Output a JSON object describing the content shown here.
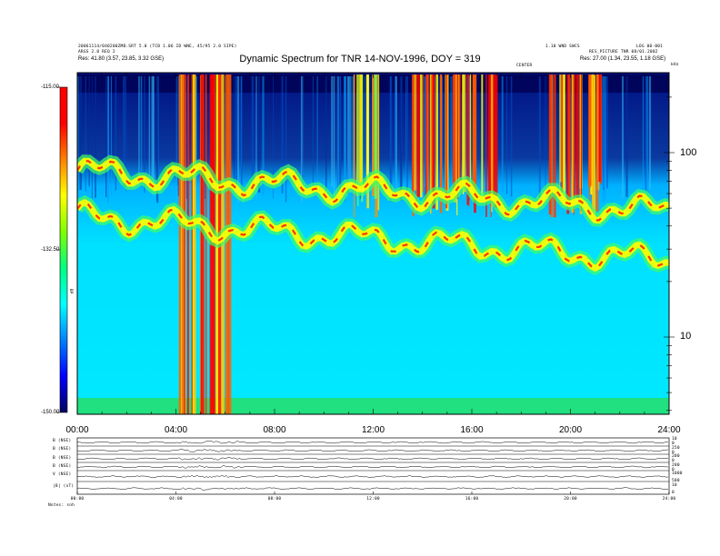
{
  "header": {
    "line1_left": "20061114/040200ZMB.SRT 5.0   (TCB 1.06 ID WNE,  45/95 2.0 SIPE)",
    "line2_left": "ARGS 2.0  REQ 2",
    "line3_left_label": "Res:",
    "line3_left_value": "41.80 (3.57, 23.85, 3.32 GSE)",
    "line1_right": "1.10 WND SWCS",
    "line1_far_right": "LOG 00-001",
    "line2_right": "RES_PICTURE TNR 08/01.2002",
    "line3_right_label": "Res:",
    "line3_right_value": "27.00 (1.34, 23.55, 1.18 GSE)",
    "corner_right": "kHz",
    "note_mid": "CENTER"
  },
  "chart_data": {
    "type": "heatmap",
    "title": "Dynamic Spectrum for TNR 14-NOV-1996, DOY = 319",
    "x_ticks": [
      "00:00",
      "04:00",
      "08:00",
      "12:00",
      "16:00",
      "20:00",
      "24:00"
    ],
    "x_range_hours": [
      0,
      24
    ],
    "y_scale": "log",
    "y_ticks": [
      100,
      10
    ],
    "y_unit": "kHz",
    "colorbar": {
      "ticks": [
        "-115.00",
        "-132.50",
        "-150.00"
      ],
      "range": [
        -150,
        -115
      ],
      "label": "dB",
      "colors": [
        "#000060",
        "#0000ff",
        "#0080ff",
        "#00ffff",
        "#00ff80",
        "#80ff00",
        "#ffff00",
        "#ff8000",
        "#ff0000",
        "#ff0000"
      ]
    },
    "features": [
      {
        "name": "upper band",
        "freq_start_khz": 80,
        "freq_end_khz": 48,
        "hour_start": 0,
        "hour_end": 24
      },
      {
        "name": "lower band",
        "freq_start_khz": 45,
        "freq_end_khz": 26,
        "hour_start": 0,
        "hour_end": 24
      },
      {
        "name": "burst",
        "hour_start": 3.9,
        "hour_end": 6.2,
        "level": "high"
      },
      {
        "name": "burst",
        "hour_start": 11.2,
        "hour_end": 12.2,
        "level": "medium"
      },
      {
        "name": "burst",
        "hour_start": 13.5,
        "hour_end": 17.0,
        "level": "high"
      },
      {
        "name": "burst",
        "hour_start": 19.1,
        "hour_end": 21.3,
        "level": "high"
      }
    ]
  },
  "panels": [
    {
      "label": "B (NSE)",
      "right_ticks": [
        "10",
        "0"
      ]
    },
    {
      "label": "B (NSE)",
      "right_ticks": [
        "250",
        "0"
      ]
    },
    {
      "label": "B (NSE)",
      "right_ticks": [
        "200",
        "0"
      ]
    },
    {
      "label": "B (NSE)",
      "right_ticks": [
        "200",
        "0"
      ]
    },
    {
      "label": "V (NSE)",
      "right_ticks": [
        "1000",
        "500"
      ]
    },
    {
      "label": "|B| (nT)",
      "right_ticks": [
        "10",
        "0"
      ]
    }
  ],
  "bottom_axis": {
    "ticks": [
      "00:00",
      "04:00",
      "08:00",
      "12:00",
      "16:00",
      "20:00",
      "24:00"
    ],
    "label": "Notes:  snh"
  }
}
